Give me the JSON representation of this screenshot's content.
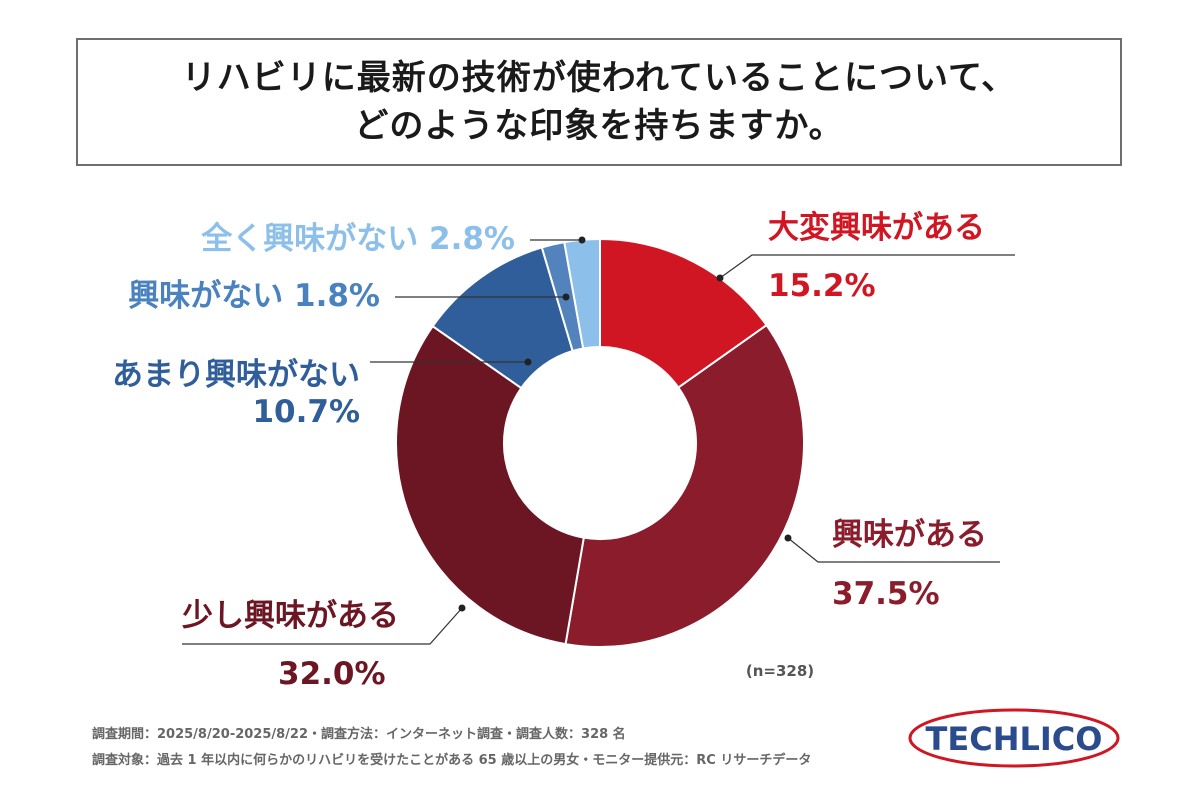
{
  "title": {
    "line1": "リハビリに最新の技術が使われていることについて、",
    "line2": "どのような印象を持ちますか。"
  },
  "chart_data": {
    "type": "pie",
    "variant": "donut",
    "categories": [
      "大変興味がある",
      "興味がある",
      "少し興味がある",
      "あまり興味がない",
      "興味がない",
      "全く興味がない"
    ],
    "values": [
      15.2,
      37.5,
      32.0,
      10.7,
      1.8,
      2.8
    ],
    "value_labels": [
      "15.2%",
      "37.5%",
      "32.0%",
      "10.7%",
      "1.8%",
      "2.8%"
    ],
    "colors": [
      "#d01622",
      "#8a1c2b",
      "#6b1622",
      "#2f5e9a",
      "#5283bd",
      "#8cc0ea"
    ],
    "label_colors": [
      "#d01622",
      "#8a1c2b",
      "#6b1622",
      "#2f5e9a",
      "#4a82bf",
      "#8cc0ea"
    ],
    "sample_note": "(n=328)"
  },
  "footer": {
    "line1": "調査期間：2025/8/20-2025/8/22・調査方法：インターネット調査・調査人数：328 名",
    "line2": "調査対象：過去 1 年以内に何らかのリハビリを受けたことがある 65 歳以上の男女・モニター提供元：RC リサーチデータ"
  },
  "logo": {
    "text": "TECHLICO",
    "text_color": "#2a4b8c",
    "ring_color": "#d01622"
  }
}
